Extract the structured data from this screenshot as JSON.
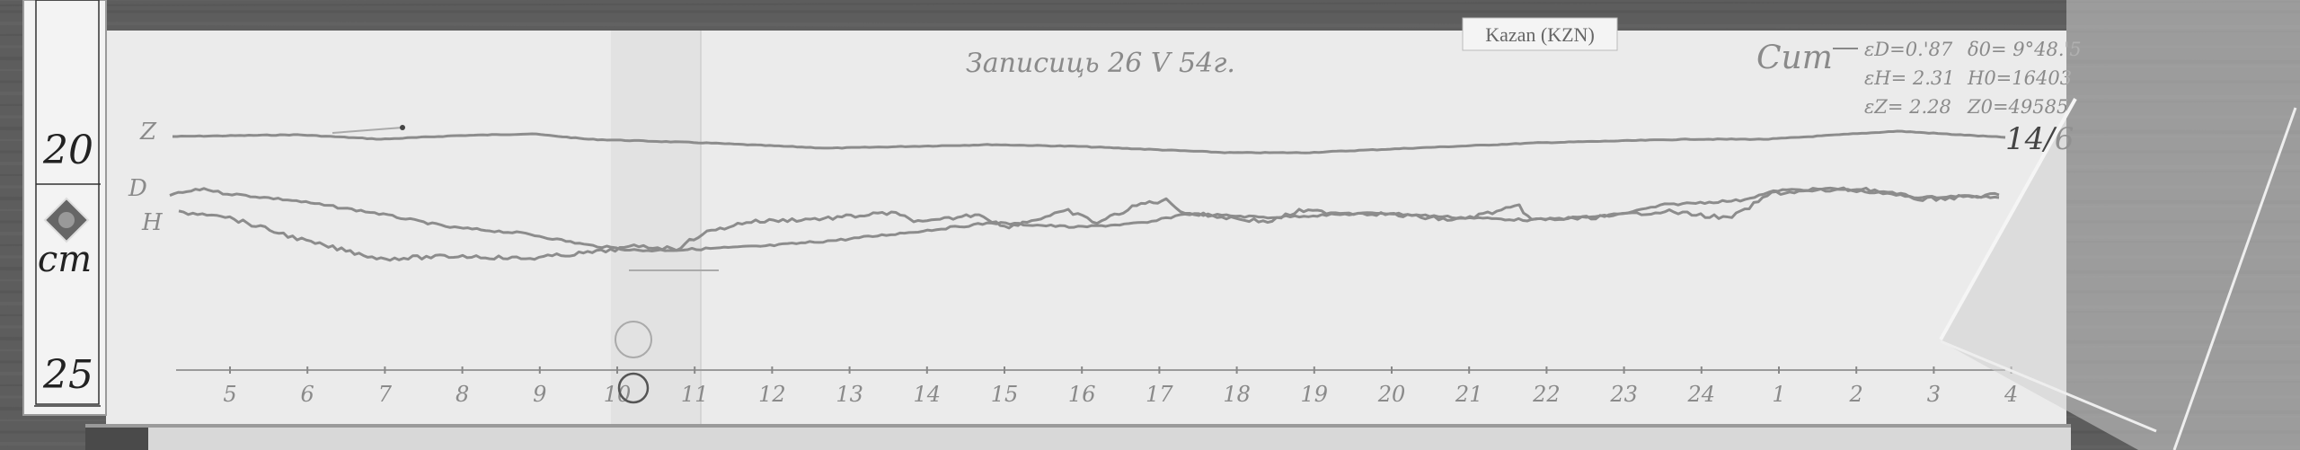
{
  "ruler": {
    "mark_top": "20",
    "unit": "cm",
    "mark_bottom": "25",
    "logo_icon": "diamond-emblem-icon"
  },
  "station_label": "Kazan (KZN)",
  "record": {
    "heading": "Записиць 26 V 54г.",
    "signature": "Сит",
    "constants": [
      [
        "εD=0.'87",
        "δ0= 9°48.'5"
      ],
      [
        "εH= 2.31",
        "H0=16403"
      ],
      [
        "εZ= 2.28",
        "Z0=49585"
      ]
    ],
    "sheet_mark": "14/6"
  },
  "traces": [
    {
      "label": "Z"
    },
    {
      "label": "D"
    },
    {
      "label": "H"
    }
  ],
  "time_axis": {
    "hour_labels": [
      "5",
      "6",
      "7",
      "8",
      "9",
      "10",
      "11",
      "12",
      "13",
      "14",
      "15",
      "16",
      "17",
      "18",
      "19",
      "20",
      "21",
      "22",
      "23",
      "24",
      "1",
      "2",
      "3",
      "4"
    ]
  },
  "colors": {
    "background": "#5b5b5b",
    "paper": "#ebebeb",
    "trace": "#8c8c8c",
    "ink": "#858585"
  }
}
